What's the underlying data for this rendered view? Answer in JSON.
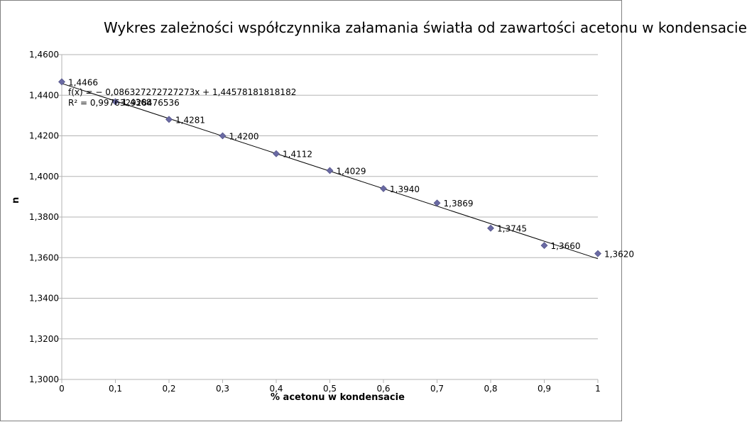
{
  "chart_data": {
    "type": "scatter",
    "title": "Wykres zależności współczynnika załamania światła od zawartości acetonu w kondensacie",
    "xlabel": "% acetonu w kondensacie",
    "ylabel": "n",
    "xlim": [
      0,
      1
    ],
    "ylim": [
      1.3,
      1.46
    ],
    "x_ticks": [
      "0",
      "0,1",
      "0,2",
      "0,3",
      "0,4",
      "0,5",
      "0,6",
      "0,7",
      "0,8",
      "0,9",
      "1"
    ],
    "y_ticks": [
      "1,3000",
      "1,3200",
      "1,3400",
      "1,3600",
      "1,3800",
      "1,4000",
      "1,4200",
      "1,4400",
      "1,4600"
    ],
    "grid": "horizontal",
    "marker_color": "#6a6aa3",
    "series": [
      {
        "x": [
          0,
          0.1,
          0.2,
          0.3,
          0.4,
          0.5,
          0.6,
          0.7,
          0.8,
          0.9,
          1.0
        ],
        "y": [
          1.4466,
          1.4368,
          1.4281,
          1.42,
          1.4112,
          1.4029,
          1.394,
          1.3869,
          1.3745,
          1.366,
          1.362
        ],
        "labels": [
          "1,4466",
          "1,4368",
          "1,4281",
          "1,4200",
          "1,4112",
          "1,4029",
          "1,3940",
          "1,3869",
          "1,3745",
          "1,3660",
          "1,3620"
        ]
      }
    ],
    "trendline": {
      "slope": -0.086327272727273,
      "intercept": 1.44578181818182,
      "equation": "f(x) = − 0,086327272727273x + 1,44578181818182",
      "r2": "R² = 0,997632928476536"
    }
  }
}
